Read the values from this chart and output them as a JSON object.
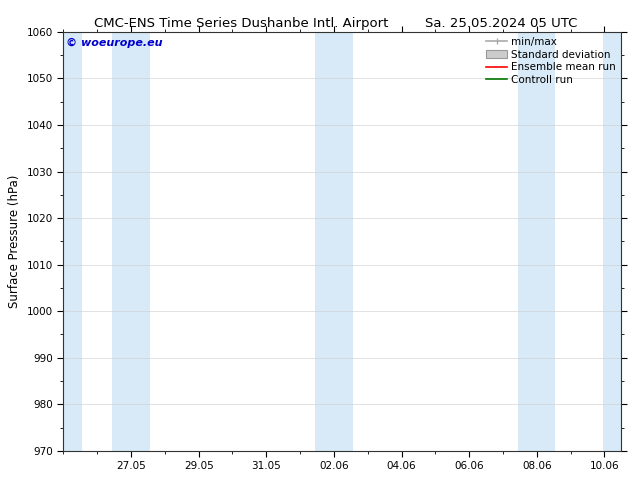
{
  "title_left": "CMC-ENS Time Series Dushanbe Intl. Airport",
  "title_right": "Sa. 25.05.2024 05 UTC",
  "ylabel": "Surface Pressure (hPa)",
  "ylim": [
    970,
    1060
  ],
  "yticks": [
    970,
    980,
    990,
    1000,
    1010,
    1020,
    1030,
    1040,
    1050,
    1060
  ],
  "xlabel_dates": [
    "27.05",
    "29.05",
    "31.05",
    "02.06",
    "04.06",
    "06.06",
    "08.06",
    "10.06"
  ],
  "xlabel_x_positions": [
    2,
    4,
    6,
    8,
    10,
    12,
    14,
    16
  ],
  "x_min": 0.0,
  "x_max": 16.5,
  "blue_band_centers": [
    0.0,
    2.0,
    8.0,
    14.0,
    16.5
  ],
  "blue_band_half": 0.55,
  "blue_band_color": "#d8eaf7",
  "watermark": "© woeurope.eu",
  "watermark_color": "#0000cc",
  "legend_labels": [
    "min/max",
    "Standard deviation",
    "Ensemble mean run",
    "Controll run"
  ],
  "minmax_color": "#aaaaaa",
  "std_color": "#cccccc",
  "ensemble_color": "#ff0000",
  "control_color": "#007700",
  "background_color": "#ffffff",
  "title_fontsize": 9.5,
  "ylabel_fontsize": 8.5,
  "tick_fontsize": 7.5,
  "legend_fontsize": 7.5,
  "watermark_fontsize": 8
}
